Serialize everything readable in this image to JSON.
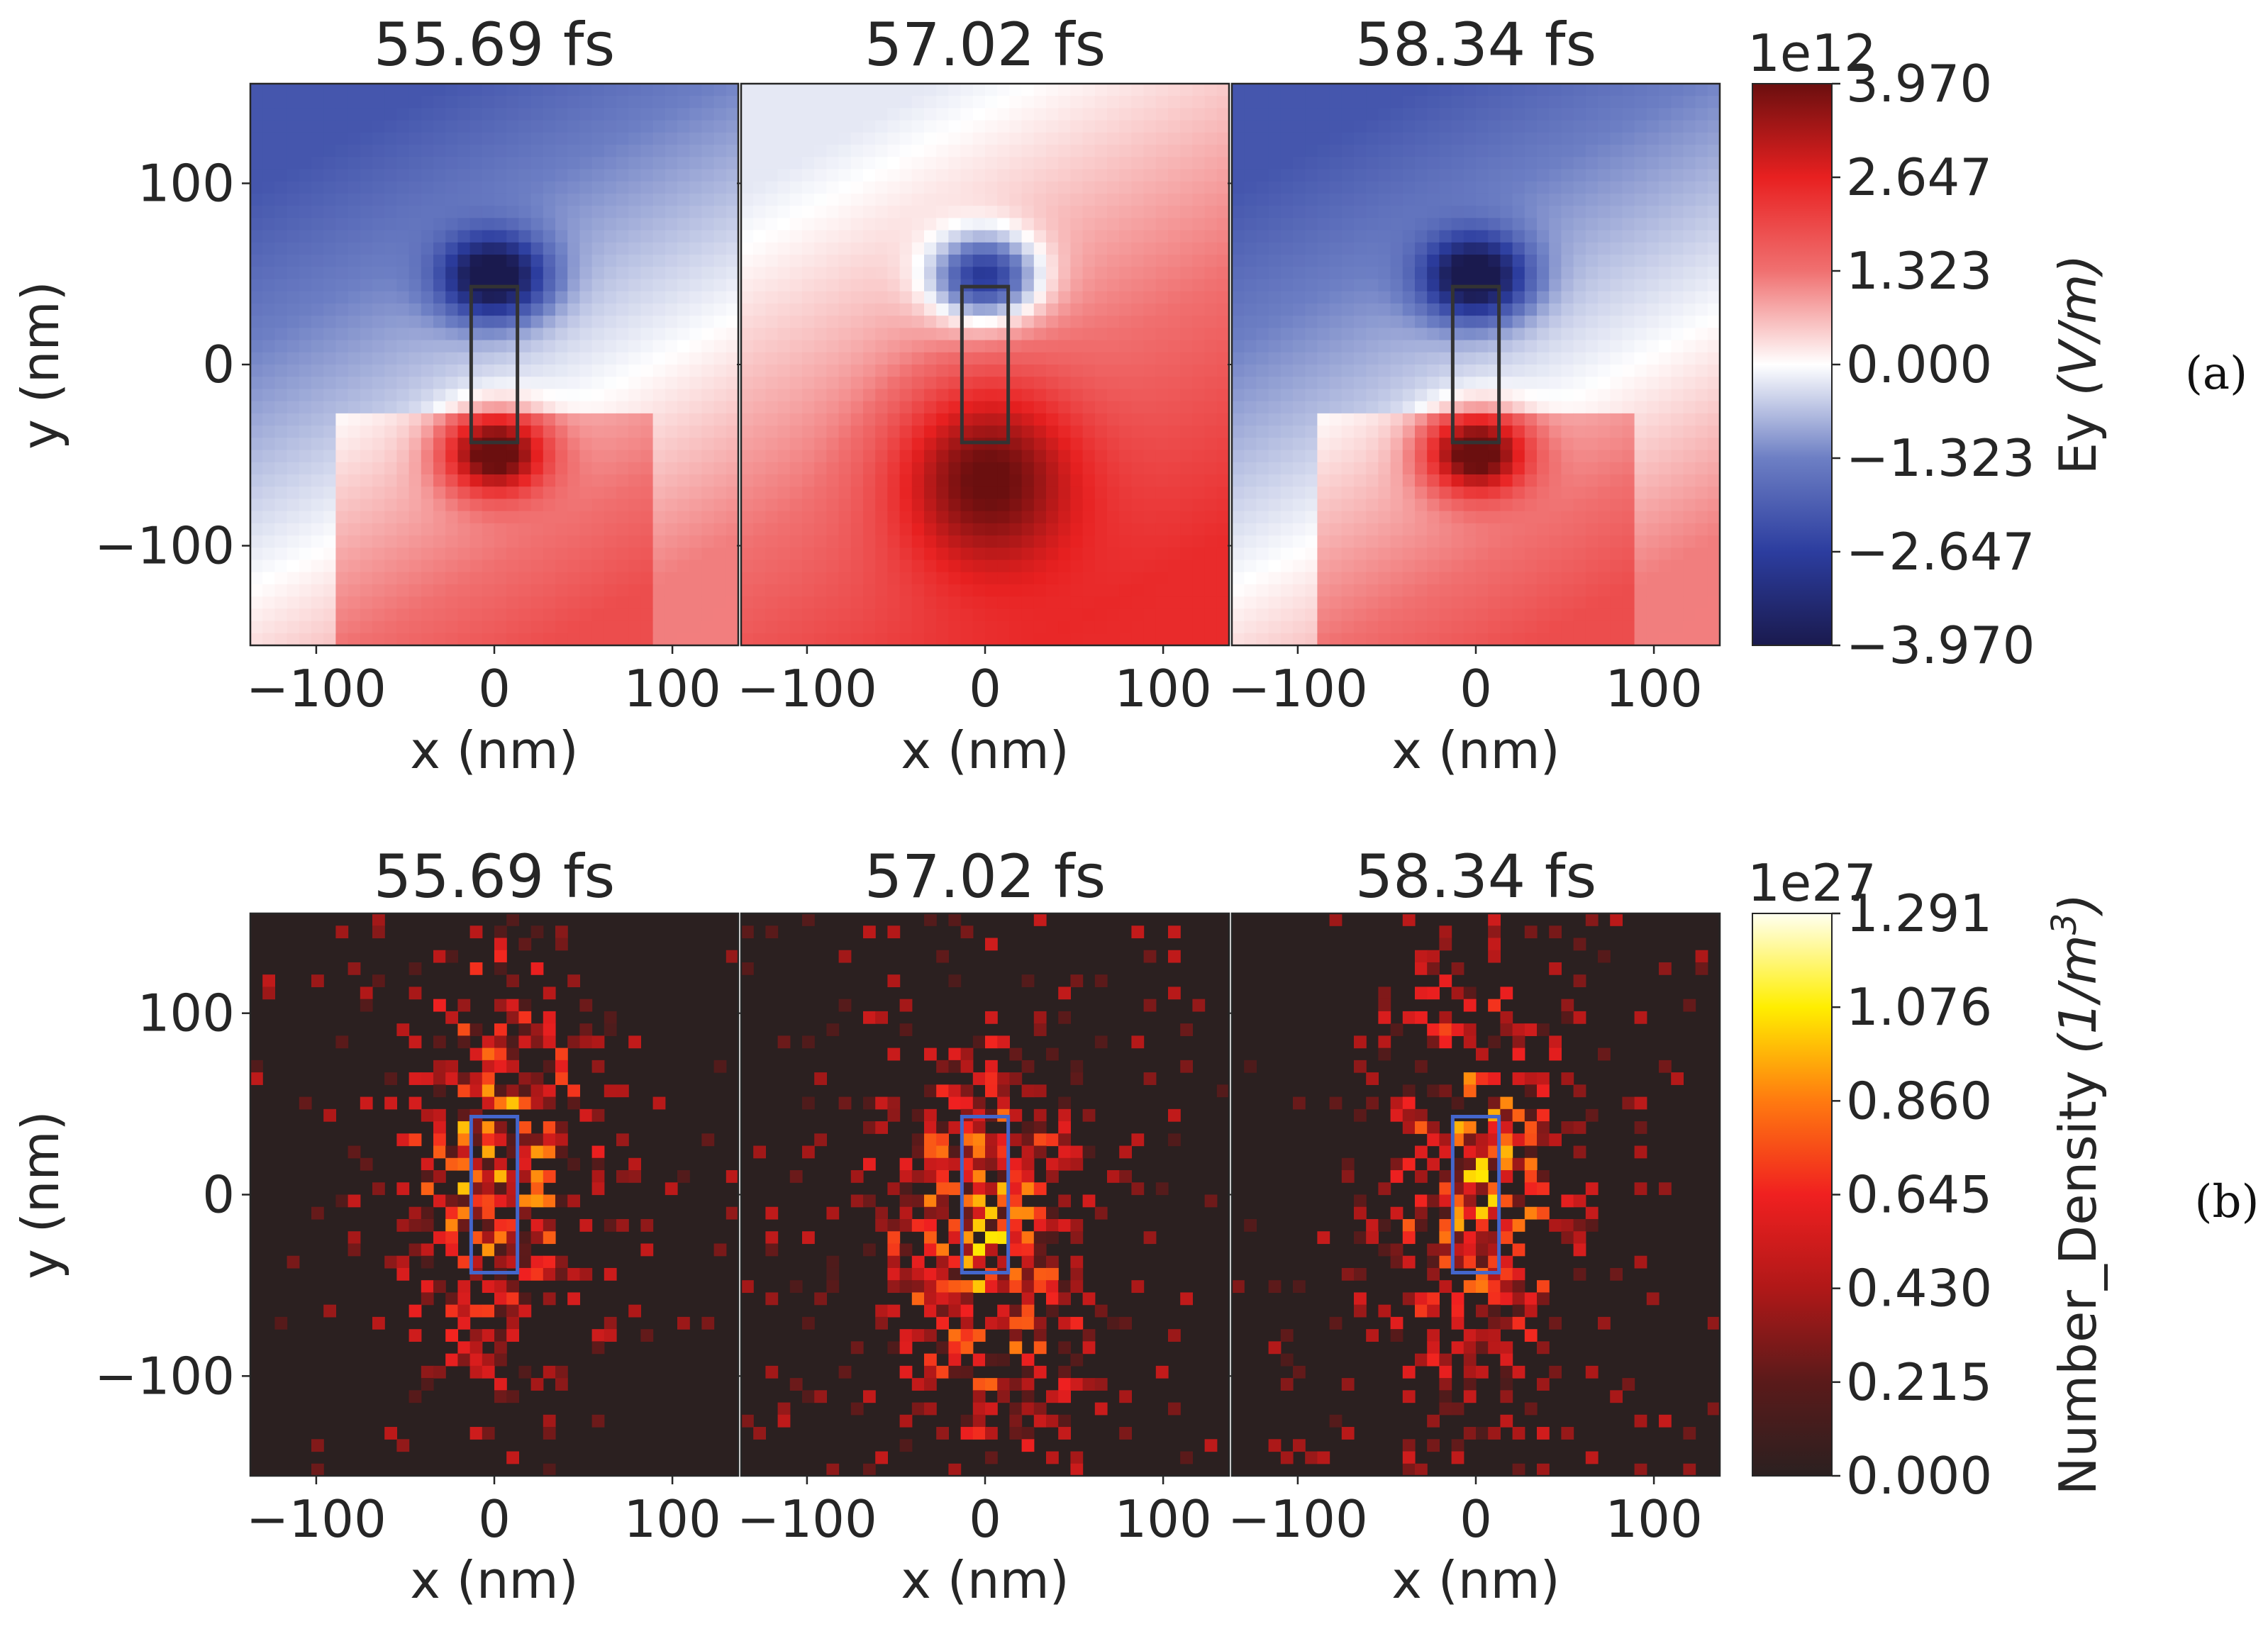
{
  "figure": {
    "panel_a_label": "(a)",
    "panel_b_label": "(b)"
  },
  "chart_data": [
    {
      "type": "heatmap",
      "name": "Ey field",
      "rows": "a",
      "subplots": [
        {
          "title": "55.69 fs",
          "pattern": "dipole_neg"
        },
        {
          "title": "57.02 fs",
          "pattern": "dipole_pos"
        },
        {
          "title": "58.34 fs",
          "pattern": "dipole_neg"
        }
      ],
      "xlabel": "x (nm)",
      "ylabel": "y (nm)",
      "xlim": [
        -137,
        137
      ],
      "ylim": [
        -155,
        155
      ],
      "xticks": [
        -100,
        0,
        100
      ],
      "xtick_labels": [
        "−100",
        "0",
        "100"
      ],
      "yticks": [
        100,
        0,
        -100
      ],
      "ytick_labels": [
        "100",
        "0",
        "−100"
      ],
      "rod": {
        "x": [
          -13,
          13
        ],
        "y": [
          -43,
          43
        ],
        "color": "#333333"
      },
      "colorbar": {
        "label": "Ey (V/m)",
        "label_plain": "Ey ",
        "label_italic": "(V/m)",
        "multiplier": "1e12",
        "range": [
          -3.97,
          3.97
        ],
        "ticks": [
          "3.970",
          "2.647",
          "1.323",
          "0.000",
          "−1.323",
          "−2.647",
          "−3.970"
        ],
        "colormap": "seismic",
        "colors": [
          "#1a1a4e",
          "#2c3d9f",
          "#6d7fc4",
          "#ffffff",
          "#f07070",
          "#e82020",
          "#6b0f0f"
        ]
      }
    },
    {
      "type": "heatmap",
      "name": "Number density",
      "rows": "b",
      "subplots": [
        {
          "title": "55.69 fs",
          "pattern": "scatter_a"
        },
        {
          "title": "57.02 fs",
          "pattern": "scatter_b"
        },
        {
          "title": "58.34 fs",
          "pattern": "scatter_c"
        }
      ],
      "xlabel": "x (nm)",
      "ylabel": "y (nm)",
      "xlim": [
        -137,
        137
      ],
      "ylim": [
        -155,
        155
      ],
      "xticks": [
        -100,
        0,
        100
      ],
      "xtick_labels": [
        "−100",
        "0",
        "100"
      ],
      "yticks": [
        100,
        0,
        -100
      ],
      "ytick_labels": [
        "100",
        "0",
        "−100"
      ],
      "rod": {
        "x": [
          -13,
          13
        ],
        "y": [
          -43,
          43
        ],
        "color": "#4466cc"
      },
      "colorbar": {
        "label": "Number_Density (1/m3)",
        "label_plain": "Number_Density ",
        "label_italic_pre": "(1/",
        "label_italic_base": "m",
        "label_sup": "3",
        "label_italic_post": ")",
        "multiplier": "1e27",
        "range": [
          0,
          1.291
        ],
        "ticks": [
          "1.291",
          "1.076",
          "0.860",
          "0.645",
          "0.430",
          "0.215",
          "0.000"
        ],
        "colormap": "hot",
        "colors": [
          "#2b2020",
          "#5a1a1a",
          "#b01818",
          "#f02020",
          "#ff7a10",
          "#ffee00",
          "#fffff0"
        ]
      }
    }
  ]
}
